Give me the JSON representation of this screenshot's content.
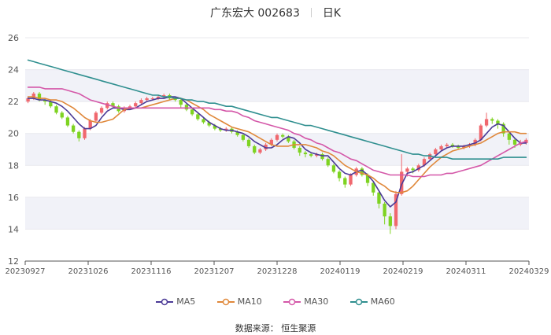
{
  "header": {
    "stock_label": "广东宏大 002683",
    "period": "日K"
  },
  "source_text": "数据来源： 恒生聚源",
  "colors": {
    "up": "#f0686e",
    "down": "#7ed321",
    "MA5": "#4b3a96",
    "MA10": "#e0883a",
    "MA30": "#d457a8",
    "MA60": "#2f8f8f",
    "grid": "#e8e8ee",
    "band": "#f1f2f8"
  },
  "chart_data": {
    "type": "candlestick",
    "ylim": [
      12,
      26
    ],
    "yticks": [
      12,
      14,
      16,
      18,
      20,
      22,
      24,
      26
    ],
    "xtick_labels": [
      "20230927",
      "20231026",
      "20231116",
      "20231207",
      "20231228",
      "20240119",
      "20240219",
      "20240311",
      "20240329"
    ],
    "series": [
      {
        "name": "MA5",
        "values": [
          22.2,
          22.2,
          22.1,
          22.1,
          22.0,
          21.9,
          21.7,
          21.4,
          21.0,
          20.6,
          20.3,
          20.3,
          20.5,
          21.0,
          21.4,
          21.6,
          21.6,
          21.5,
          21.5,
          21.6,
          21.8,
          22.0,
          22.1,
          22.2,
          22.2,
          22.3,
          22.3,
          22.2,
          21.9,
          21.6,
          21.3,
          21.0,
          20.7,
          20.5,
          20.3,
          20.2,
          20.2,
          20.1,
          20.0,
          19.8,
          19.5,
          19.3,
          19.1,
          19.1,
          19.3,
          19.6,
          19.8,
          19.7,
          19.4,
          19.0,
          18.8,
          18.7,
          18.6,
          18.6,
          18.2,
          17.8,
          17.5,
          17.4,
          17.6,
          17.7,
          17.4,
          17.0,
          16.4,
          15.8,
          15.4,
          15.7,
          16.8,
          17.5,
          17.6,
          17.8,
          18.0,
          18.3,
          18.6,
          18.9,
          19.1,
          19.2,
          19.2,
          19.2,
          19.3,
          19.4,
          19.6,
          20.0,
          20.4,
          20.6,
          20.5,
          20.1,
          19.7,
          19.4,
          19.4
        ]
      },
      {
        "name": "MA10",
        "values": [
          22.3,
          22.3,
          22.2,
          22.2,
          22.1,
          22.1,
          22.0,
          21.8,
          21.6,
          21.3,
          21.0,
          20.8,
          20.7,
          20.7,
          20.8,
          20.9,
          21.2,
          21.5,
          21.6,
          21.6,
          21.6,
          21.7,
          21.8,
          21.9,
          22.0,
          22.1,
          22.2,
          22.2,
          22.1,
          21.9,
          21.7,
          21.5,
          21.2,
          21.0,
          20.8,
          20.6,
          20.4,
          20.3,
          20.2,
          20.1,
          19.9,
          19.7,
          19.5,
          19.3,
          19.2,
          19.2,
          19.2,
          19.3,
          19.3,
          19.3,
          19.2,
          19.1,
          18.9,
          18.8,
          18.6,
          18.3,
          18.0,
          17.8,
          17.6,
          17.5,
          17.4,
          17.2,
          16.9,
          16.7,
          16.4,
          16.3,
          16.3,
          16.4,
          16.7,
          17.1,
          17.5,
          17.9,
          18.2,
          18.5,
          18.7,
          18.9,
          19.0,
          19.1,
          19.2,
          19.3,
          19.4,
          19.6,
          19.8,
          20.0,
          20.1,
          20.1,
          20.1,
          20.0,
          20.0
        ]
      },
      {
        "name": "MA30",
        "values": [
          22.9,
          22.9,
          22.9,
          22.8,
          22.8,
          22.8,
          22.8,
          22.7,
          22.6,
          22.5,
          22.3,
          22.1,
          22.0,
          21.9,
          21.8,
          21.7,
          21.6,
          21.6,
          21.6,
          21.6,
          21.6,
          21.6,
          21.6,
          21.6,
          21.6,
          21.6,
          21.6,
          21.6,
          21.6,
          21.6,
          21.6,
          21.6,
          21.6,
          21.5,
          21.5,
          21.4,
          21.4,
          21.3,
          21.1,
          21.0,
          20.8,
          20.7,
          20.6,
          20.5,
          20.4,
          20.3,
          20.2,
          20.0,
          19.9,
          19.7,
          19.6,
          19.4,
          19.3,
          19.1,
          18.9,
          18.8,
          18.6,
          18.4,
          18.3,
          18.1,
          17.9,
          17.7,
          17.6,
          17.5,
          17.4,
          17.4,
          17.4,
          17.4,
          17.3,
          17.3,
          17.3,
          17.4,
          17.4,
          17.4,
          17.5,
          17.5,
          17.6,
          17.7,
          17.8,
          17.9,
          18.0,
          18.2,
          18.4,
          18.6,
          18.8,
          19.0,
          19.2,
          19.4,
          19.5
        ]
      },
      {
        "name": "MA60",
        "values": [
          24.6,
          24.5,
          24.4,
          24.3,
          24.2,
          24.1,
          24.0,
          23.9,
          23.8,
          23.7,
          23.6,
          23.5,
          23.4,
          23.3,
          23.2,
          23.1,
          23.0,
          22.9,
          22.8,
          22.7,
          22.6,
          22.5,
          22.4,
          22.4,
          22.3,
          22.3,
          22.2,
          22.2,
          22.1,
          22.1,
          22.0,
          22.0,
          21.9,
          21.9,
          21.8,
          21.7,
          21.7,
          21.6,
          21.5,
          21.4,
          21.3,
          21.2,
          21.1,
          21.0,
          21.0,
          20.9,
          20.8,
          20.7,
          20.6,
          20.5,
          20.5,
          20.4,
          20.3,
          20.2,
          20.1,
          20.0,
          19.9,
          19.8,
          19.7,
          19.6,
          19.5,
          19.4,
          19.3,
          19.2,
          19.1,
          19.0,
          18.9,
          18.8,
          18.7,
          18.7,
          18.6,
          18.6,
          18.5,
          18.5,
          18.5,
          18.4,
          18.4,
          18.4,
          18.4,
          18.4,
          18.4,
          18.4,
          18.4,
          18.4,
          18.5,
          18.5,
          18.5,
          18.5,
          18.5
        ]
      }
    ],
    "candles": [
      [
        22.0,
        22.2,
        22.3,
        21.9
      ],
      [
        22.2,
        22.5,
        22.6,
        22.1
      ],
      [
        22.5,
        22.1,
        22.6,
        22.0
      ],
      [
        22.1,
        22.0,
        22.2,
        21.8
      ],
      [
        22.0,
        21.7,
        22.1,
        21.6
      ],
      [
        21.7,
        21.3,
        21.8,
        21.2
      ],
      [
        21.3,
        21.0,
        21.4,
        20.9
      ],
      [
        21.0,
        20.5,
        21.1,
        20.4
      ],
      [
        20.5,
        20.1,
        20.6,
        20.0
      ],
      [
        20.1,
        19.7,
        20.2,
        19.5
      ],
      [
        19.7,
        20.3,
        20.4,
        19.6
      ],
      [
        20.3,
        20.8,
        20.9,
        20.2
      ],
      [
        20.8,
        21.3,
        21.4,
        20.7
      ],
      [
        21.3,
        21.6,
        21.7,
        21.2
      ],
      [
        21.6,
        21.9,
        22.0,
        21.5
      ],
      [
        21.9,
        21.7,
        22.0,
        21.6
      ],
      [
        21.7,
        21.4,
        21.8,
        21.3
      ],
      [
        21.4,
        21.6,
        21.7,
        21.3
      ],
      [
        21.6,
        21.7,
        21.8,
        21.5
      ],
      [
        21.7,
        21.9,
        22.0,
        21.6
      ],
      [
        21.9,
        22.1,
        22.2,
        21.8
      ],
      [
        22.1,
        22.2,
        22.3,
        22.0
      ],
      [
        22.2,
        22.2,
        22.3,
        22.1
      ],
      [
        22.2,
        22.3,
        22.4,
        22.1
      ],
      [
        22.3,
        22.4,
        22.5,
        22.2
      ],
      [
        22.4,
        22.2,
        22.5,
        22.1
      ],
      [
        22.2,
        22.1,
        22.3,
        22.0
      ],
      [
        22.1,
        21.8,
        22.2,
        21.6
      ],
      [
        21.8,
        21.5,
        21.9,
        21.4
      ],
      [
        21.5,
        21.2,
        21.6,
        21.1
      ],
      [
        21.2,
        20.9,
        21.3,
        20.8
      ],
      [
        20.9,
        20.7,
        21.0,
        20.6
      ],
      [
        20.7,
        20.5,
        20.8,
        20.4
      ],
      [
        20.5,
        20.3,
        20.6,
        20.2
      ],
      [
        20.3,
        20.2,
        20.4,
        20.1
      ],
      [
        20.2,
        20.3,
        20.4,
        20.1
      ],
      [
        20.3,
        20.1,
        20.4,
        20.0
      ],
      [
        20.1,
        19.9,
        20.2,
        19.8
      ],
      [
        19.9,
        19.6,
        20.0,
        19.5
      ],
      [
        19.6,
        19.2,
        19.7,
        19.1
      ],
      [
        19.2,
        18.8,
        19.3,
        18.7
      ],
      [
        18.8,
        19.0,
        19.1,
        18.7
      ],
      [
        19.0,
        19.3,
        19.4,
        18.9
      ],
      [
        19.3,
        19.6,
        19.7,
        19.2
      ],
      [
        19.6,
        19.9,
        20.0,
        19.5
      ],
      [
        19.9,
        19.8,
        20.0,
        19.7
      ],
      [
        19.8,
        19.5,
        19.9,
        19.4
      ],
      [
        19.5,
        19.1,
        19.6,
        19.0
      ],
      [
        19.1,
        18.8,
        19.2,
        18.6
      ],
      [
        18.8,
        18.7,
        18.9,
        18.5
      ],
      [
        18.7,
        18.6,
        18.8,
        18.5
      ],
      [
        18.6,
        18.7,
        18.8,
        18.5
      ],
      [
        18.7,
        18.4,
        18.8,
        18.3
      ],
      [
        18.4,
        18.0,
        18.5,
        17.9
      ],
      [
        18.0,
        17.6,
        18.1,
        17.5
      ],
      [
        17.6,
        17.2,
        17.7,
        17.0
      ],
      [
        17.2,
        16.8,
        17.3,
        16.6
      ],
      [
        16.8,
        17.4,
        17.5,
        16.7
      ],
      [
        17.4,
        17.8,
        17.9,
        17.3
      ],
      [
        17.8,
        17.4,
        17.9,
        17.3
      ],
      [
        17.4,
        16.9,
        17.5,
        16.7
      ],
      [
        16.9,
        16.3,
        17.0,
        16.1
      ],
      [
        16.3,
        15.6,
        16.4,
        15.3
      ],
      [
        15.6,
        14.8,
        15.7,
        14.3
      ],
      [
        14.8,
        14.2,
        15.0,
        13.7
      ],
      [
        14.2,
        16.2,
        16.4,
        14.0
      ],
      [
        16.2,
        17.6,
        18.7,
        16.1
      ],
      [
        17.6,
        17.8,
        17.9,
        17.3
      ],
      [
        17.8,
        17.7,
        17.9,
        17.5
      ],
      [
        17.7,
        18.0,
        18.1,
        17.6
      ],
      [
        18.0,
        18.4,
        18.5,
        17.9
      ],
      [
        18.4,
        18.7,
        18.8,
        18.3
      ],
      [
        18.7,
        19.0,
        19.1,
        18.6
      ],
      [
        19.0,
        19.2,
        19.3,
        18.9
      ],
      [
        19.2,
        19.3,
        19.4,
        19.1
      ],
      [
        19.3,
        19.2,
        19.4,
        19.1
      ],
      [
        19.2,
        19.1,
        19.3,
        19.0
      ],
      [
        19.1,
        19.2,
        19.3,
        19.0
      ],
      [
        19.2,
        19.3,
        19.4,
        19.1
      ],
      [
        19.3,
        19.6,
        19.7,
        19.2
      ],
      [
        19.6,
        20.5,
        20.6,
        19.5
      ],
      [
        20.5,
        20.9,
        21.3,
        20.4
      ],
      [
        20.9,
        20.8,
        21.0,
        20.6
      ],
      [
        20.8,
        20.6,
        20.9,
        20.3
      ],
      [
        20.6,
        20.0,
        20.7,
        19.8
      ],
      [
        20.0,
        19.6,
        20.1,
        19.3
      ],
      [
        19.6,
        19.3,
        19.7,
        19.1
      ],
      [
        19.3,
        19.4,
        19.6,
        19.2
      ],
      [
        19.4,
        19.6,
        19.7,
        19.3
      ]
    ]
  }
}
